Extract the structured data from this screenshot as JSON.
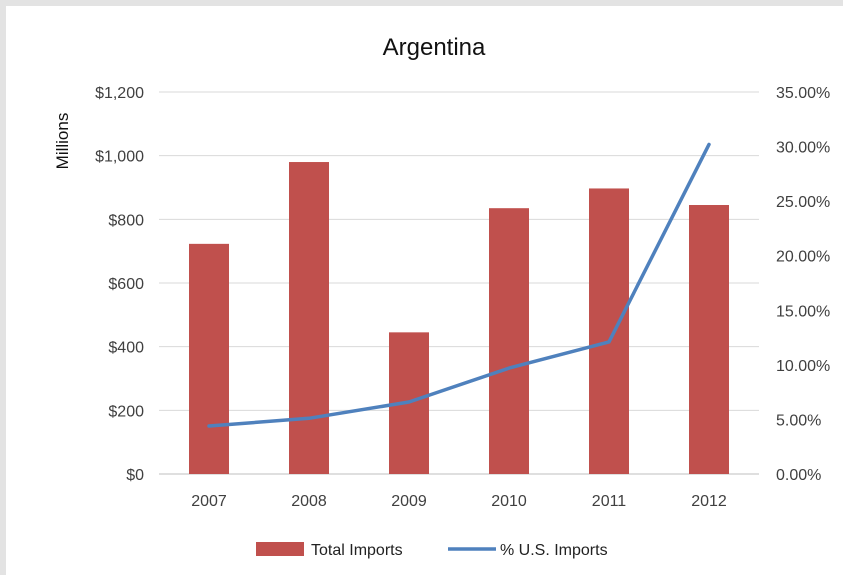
{
  "chart_data": {
    "type": "bar",
    "title": "Argentina",
    "ylabel": "Millions",
    "xlabel": "",
    "categories": [
      "2007",
      "2008",
      "2009",
      "2010",
      "2011",
      "2012"
    ],
    "series": [
      {
        "name": "Total Imports",
        "type": "bar",
        "axis": "left",
        "color": "#c0504d",
        "values": [
          723,
          980,
          445,
          835,
          897,
          845
        ]
      },
      {
        "name": "% U.S. Imports",
        "type": "line",
        "axis": "right",
        "color": "#4f81bd",
        "values": [
          0.044,
          0.051,
          0.066,
          0.097,
          0.121,
          0.302
        ]
      }
    ],
    "ylim": [
      0,
      1200
    ],
    "y_ticks": [
      0,
      200,
      400,
      600,
      800,
      1000,
      1200
    ],
    "y_tick_labels": [
      "$0",
      "$200",
      "$400",
      "$600",
      "$800",
      "$1,000",
      "$1,200"
    ],
    "y2lim": [
      0,
      0.35
    ],
    "y2_ticks": [
      0,
      0.05,
      0.1,
      0.15,
      0.2,
      0.25,
      0.3,
      0.35
    ],
    "y2_tick_labels": [
      "0.00%",
      "5.00%",
      "10.00%",
      "15.00%",
      "20.00%",
      "25.00%",
      "30.00%",
      "35.00%"
    ],
    "grid": true,
    "legend": "bottom"
  }
}
